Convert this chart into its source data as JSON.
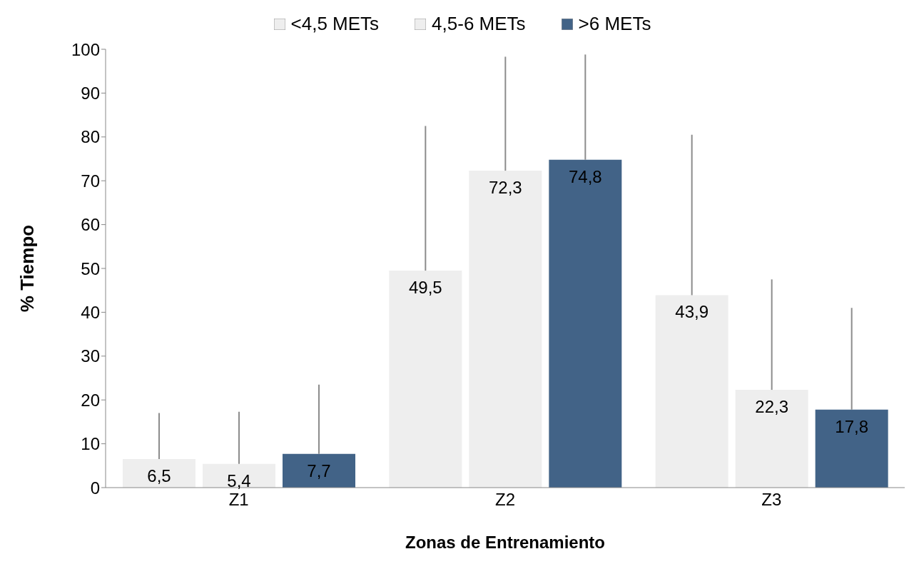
{
  "chart_data": {
    "type": "bar",
    "xlabel": "Zonas de Entrenamiento",
    "ylabel": "% Tiempo",
    "categories": [
      "Z1",
      "Z2",
      "Z3"
    ],
    "series": [
      {
        "name": "<4,5 METs",
        "color": "#eeeeee",
        "values": [
          6.5,
          49.5,
          43.9
        ],
        "value_labels": [
          "6,5",
          "49,5",
          "43,9"
        ],
        "errors": [
          [
            6.5,
            17
          ],
          [
            49.5,
            82.5
          ],
          [
            43.9,
            80.5
          ]
        ]
      },
      {
        "name": "4,5-6 METs",
        "color": "#eeeeee",
        "values": [
          5.4,
          72.3,
          22.3
        ],
        "value_labels": [
          "5,4",
          "72,3",
          "22,3"
        ],
        "errors": [
          [
            5.4,
            17.3
          ],
          [
            72.3,
            98.3
          ],
          [
            22.3,
            47.5
          ]
        ]
      },
      {
        "name": ">6 METs",
        "color": "#426387",
        "values": [
          7.7,
          74.8,
          17.8
        ],
        "value_labels": [
          "7,7",
          "74,8",
          "17,8"
        ],
        "errors": [
          [
            7.7,
            23.5
          ],
          [
            74.8,
            98.8
          ],
          [
            17.8,
            41
          ]
        ]
      }
    ],
    "ylim": [
      0,
      100
    ],
    "yticks": [
      0,
      10,
      20,
      30,
      40,
      50,
      60,
      70,
      80,
      90,
      100
    ],
    "grid": false,
    "legend": "top"
  }
}
